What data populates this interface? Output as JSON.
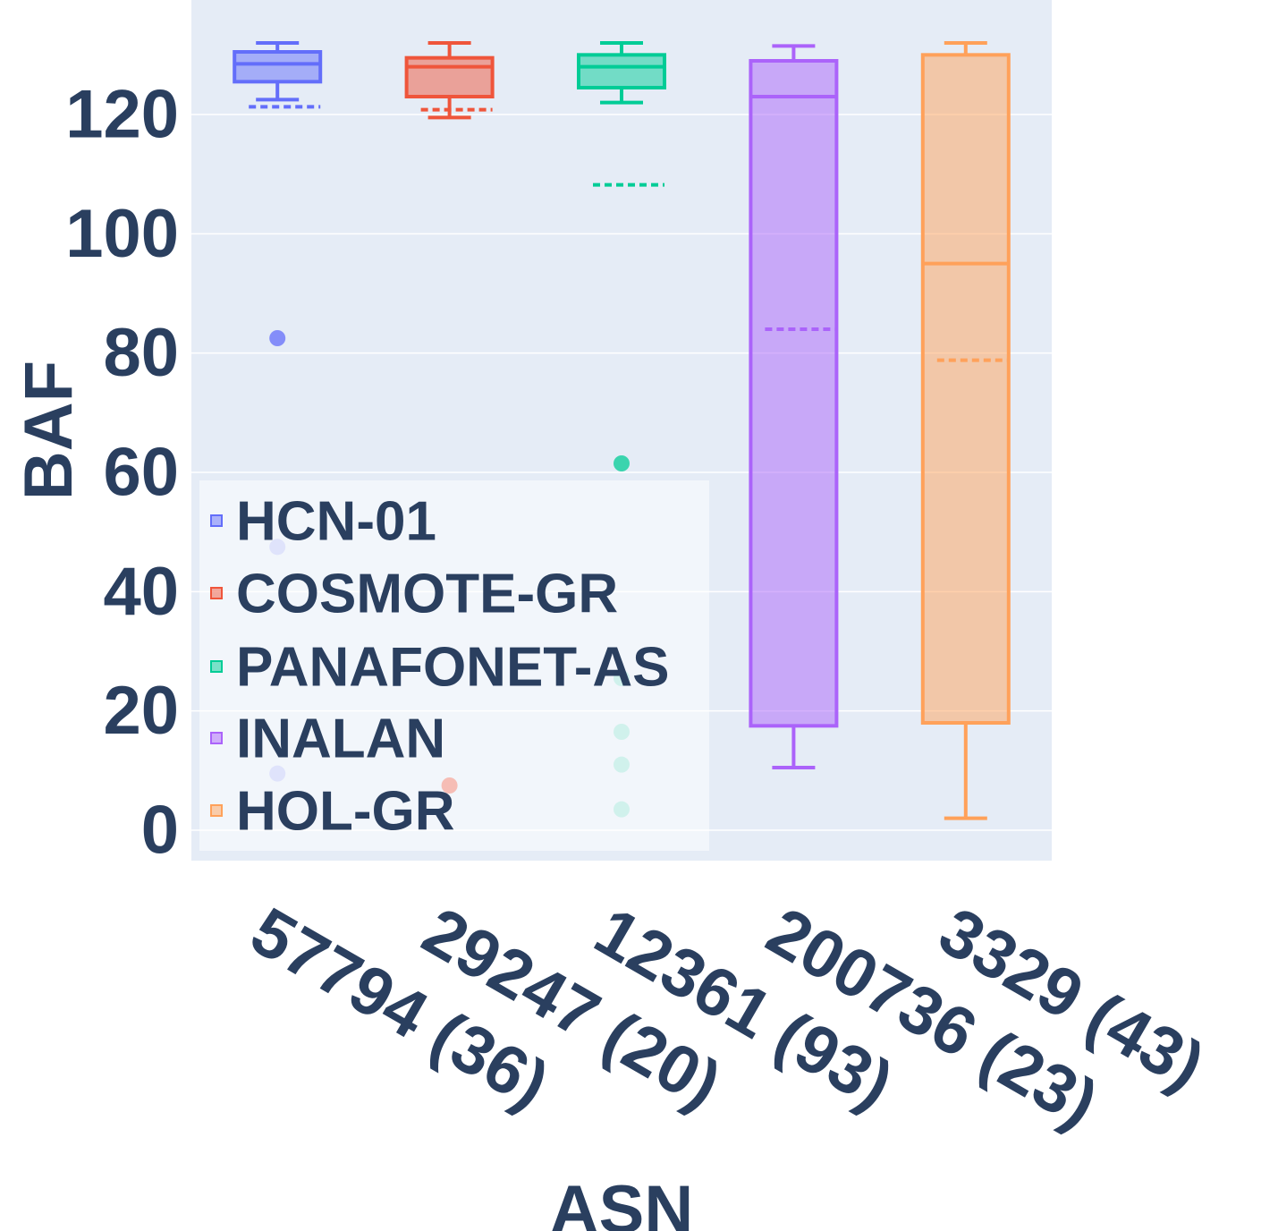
{
  "chart_data": {
    "type": "box",
    "xlabel": "ASN",
    "ylabel": "BAF",
    "ylim": [
      -5,
      138
    ],
    "yticks": [
      0,
      20,
      40,
      60,
      80,
      100,
      120
    ],
    "grid": true,
    "legend_position": "bottom-left",
    "boxmean": true,
    "series": [
      {
        "name": "HCN-01",
        "category": "57794 (36)",
        "color": "#636efa",
        "min": 122.5,
        "q1": 125.5,
        "median": 128.5,
        "q3": 130.5,
        "max": 132,
        "mean": 121.3,
        "outliers": [
          82.5,
          47.5,
          9.5
        ]
      },
      {
        "name": "COSMOTE-GR",
        "category": "29247 (20)",
        "color": "#ef553b",
        "min": 119.5,
        "q1": 123,
        "median": 128,
        "q3": 129.5,
        "max": 132,
        "mean": 120.8,
        "outliers": [
          7.5
        ]
      },
      {
        "name": "PANAFONET-AS",
        "category": "12361 (93)",
        "color": "#00cc96",
        "min": 122,
        "q1": 124.5,
        "median": 128,
        "q3": 130,
        "max": 132,
        "mean": 108.2,
        "outliers": [
          61.5,
          25.5,
          16.5,
          11,
          3.5
        ]
      },
      {
        "name": "INALAN",
        "category": "200736 (23)",
        "color": "#ab63fa",
        "min": 10.5,
        "q1": 17.5,
        "median": 123,
        "q3": 129,
        "max": 131.5,
        "mean": 84,
        "outliers": []
      },
      {
        "name": "HOL-GR",
        "category": "3329 (43)",
        "color": "#ffa15a",
        "min": 2,
        "q1": 18,
        "median": 95,
        "q3": 130,
        "max": 132,
        "mean": 78.8,
        "outliers": []
      }
    ]
  }
}
